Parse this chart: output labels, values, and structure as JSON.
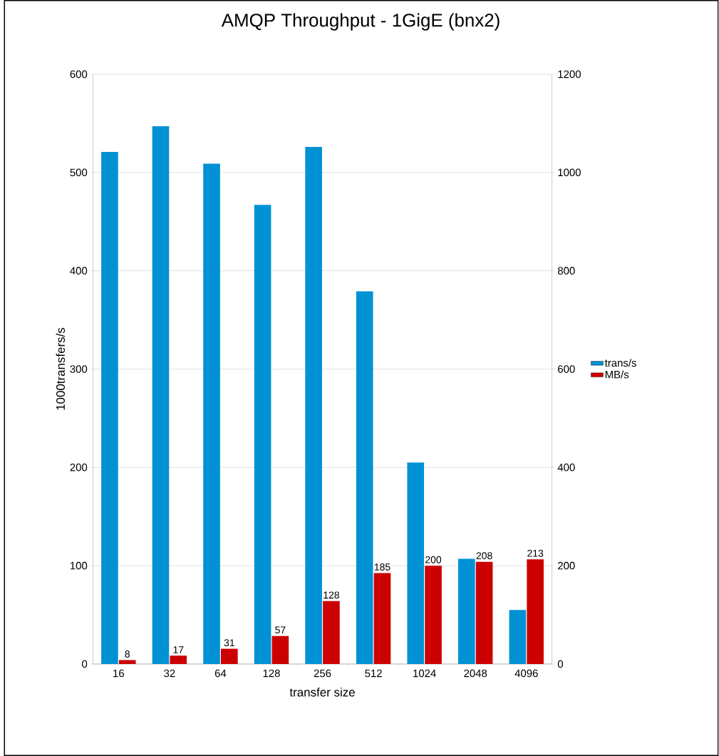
{
  "chart_data": {
    "type": "bar",
    "title": "AMQP Throughput - 1GigE (bnx2)",
    "xlabel": "transfer size",
    "ylabel": "1000transfers/s",
    "categories": [
      "16",
      "32",
      "64",
      "128",
      "256",
      "512",
      "1024",
      "2048",
      "4096"
    ],
    "series": [
      {
        "name": "trans/s",
        "color": "#0092d4",
        "values": [
          521,
          547,
          509,
          467,
          526,
          379,
          205,
          107,
          55
        ]
      },
      {
        "name": "MB/s",
        "color": "#cc0000",
        "axis": "y2",
        "values": [
          8,
          17,
          31,
          57,
          128,
          185,
          200,
          208,
          213
        ],
        "value_labels": [
          "8",
          "17",
          "31",
          "57",
          "128",
          "185",
          "200",
          "208",
          "213"
        ]
      }
    ],
    "ylim": [
      0,
      600
    ],
    "yticks": [
      0,
      100,
      200,
      300,
      400,
      500,
      600
    ],
    "y2lim": [
      0,
      1200
    ],
    "y2ticks": [
      0,
      200,
      400,
      600,
      800,
      1000,
      1200
    ],
    "grid": "y",
    "legend": "right"
  }
}
